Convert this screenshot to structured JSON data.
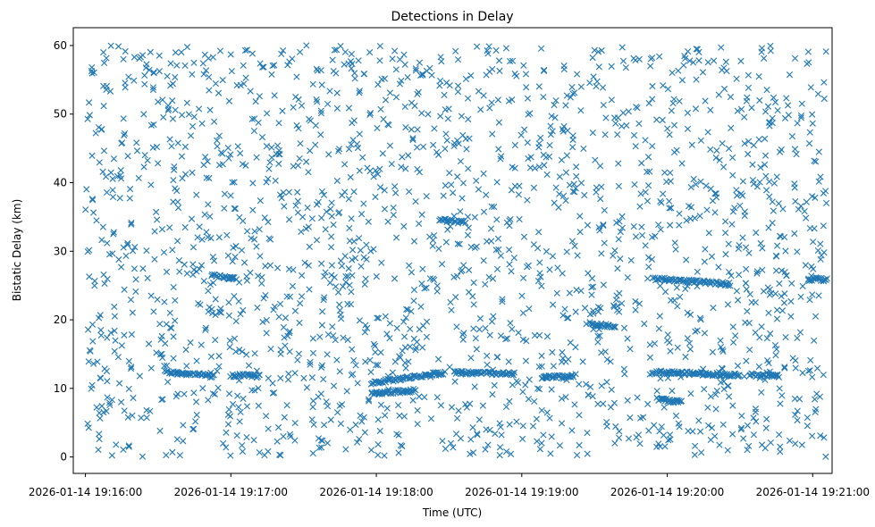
{
  "chart_data": {
    "type": "scatter",
    "title": "Detections in Delay",
    "xlabel": "Time (UTC)",
    "ylabel": "Bistatic Delay (km)",
    "marker": "x",
    "color": "#1f77b4",
    "grid": false,
    "legend": "none",
    "xlim": [
      "2026-01-14 19:15:55",
      "2026-01-14 19:21:08"
    ],
    "ylim": [
      -2.4,
      62.6
    ],
    "x_ticks": [
      "2026-01-14 19:16:00",
      "2026-01-14 19:17:00",
      "2026-01-14 19:18:00",
      "2026-01-14 19:19:00",
      "2026-01-14 19:20:00",
      "2026-01-14 19:21:00"
    ],
    "y_ticks": [
      0,
      10,
      20,
      30,
      40,
      50,
      60
    ],
    "x_range_of_detections": [
      "2026-01-14 19:16:00",
      "2026-01-14 19:21:06"
    ],
    "y_range_of_detections": [
      0,
      60
    ],
    "background_noise_points_per_second": 6.5,
    "tracks": [
      {
        "start": "2026-01-14 19:16:33",
        "end": "2026-01-14 19:16:53",
        "delay_start": 12.4,
        "delay_end": 11.8
      },
      {
        "start": "2026-01-14 19:16:52",
        "end": "2026-01-14 19:17:02",
        "delay_start": 26.4,
        "delay_end": 26.0
      },
      {
        "start": "2026-01-14 19:17:00",
        "end": "2026-01-14 19:17:12",
        "delay_start": 11.9,
        "delay_end": 11.8
      },
      {
        "start": "2026-01-14 19:17:58",
        "end": "2026-01-14 19:18:28",
        "delay_start": 10.8,
        "delay_end": 12.3
      },
      {
        "start": "2026-01-14 19:17:58",
        "end": "2026-01-14 19:18:16",
        "delay_start": 9.3,
        "delay_end": 9.7
      },
      {
        "start": "2026-01-14 19:18:26",
        "end": "2026-01-14 19:18:36",
        "delay_start": 34.6,
        "delay_end": 34.2
      },
      {
        "start": "2026-01-14 19:18:32",
        "end": "2026-01-14 19:18:57",
        "delay_start": 12.3,
        "delay_end": 12.1
      },
      {
        "start": "2026-01-14 19:19:08",
        "end": "2026-01-14 19:19:22",
        "delay_start": 11.5,
        "delay_end": 11.9
      },
      {
        "start": "2026-01-14 19:19:28",
        "end": "2026-01-14 19:19:38",
        "delay_start": 19.4,
        "delay_end": 19.0
      },
      {
        "start": "2026-01-14 19:19:54",
        "end": "2026-01-14 19:20:26",
        "delay_start": 26.0,
        "delay_end": 25.2
      },
      {
        "start": "2026-01-14 19:19:54",
        "end": "2026-01-14 19:20:30",
        "delay_start": 12.4,
        "delay_end": 11.9
      },
      {
        "start": "2026-01-14 19:19:56",
        "end": "2026-01-14 19:20:06",
        "delay_start": 8.4,
        "delay_end": 8.0
      },
      {
        "start": "2026-01-14 19:20:34",
        "end": "2026-01-14 19:20:46",
        "delay_start": 12.0,
        "delay_end": 11.8
      },
      {
        "start": "2026-01-14 19:20:58",
        "end": "2026-01-14 19:21:06",
        "delay_start": 26.0,
        "delay_end": 25.8
      }
    ]
  }
}
